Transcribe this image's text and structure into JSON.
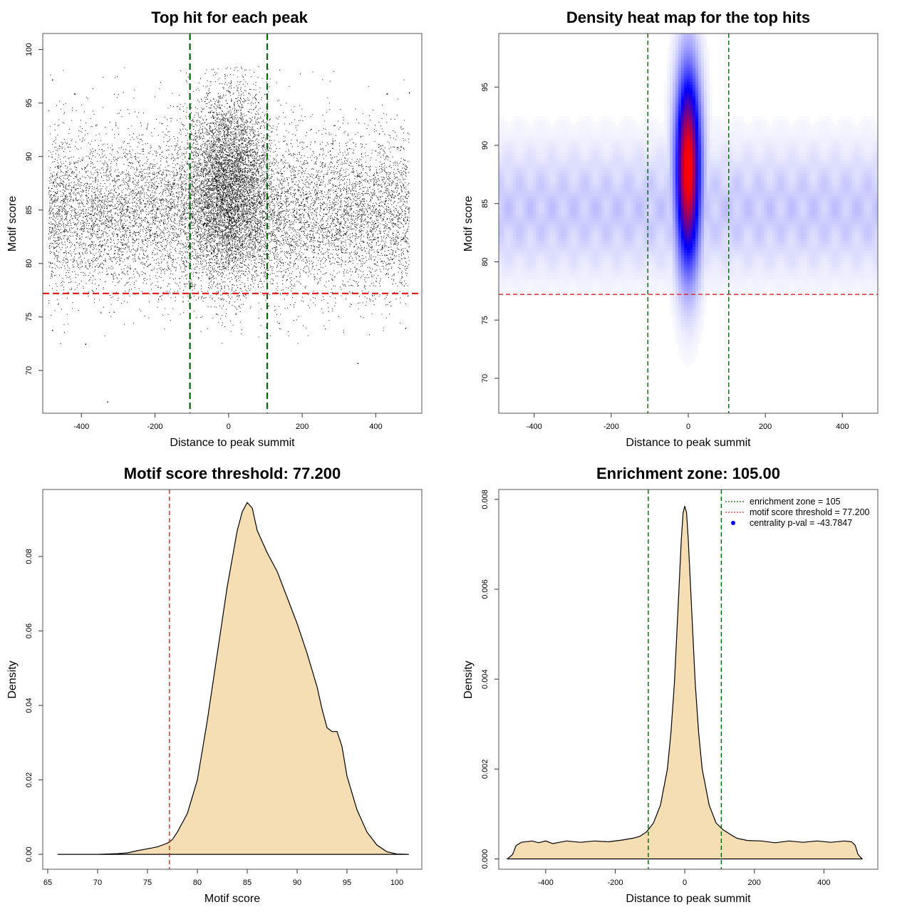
{
  "chart_data": [
    {
      "id": "scatter",
      "type": "scatter",
      "title": "Top hit for each peak",
      "xlabel": "Distance to peak summit",
      "ylabel": "Motif score",
      "xlim": [
        -505,
        525
      ],
      "ylim": [
        66,
        101.5
      ],
      "xticks": [
        -400,
        -200,
        0,
        200,
        400
      ],
      "yticks": [
        70,
        75,
        80,
        85,
        90,
        95,
        100
      ],
      "vlines": [
        {
          "x": -105,
          "color": "#006400"
        },
        {
          "x": 105,
          "color": "#006400"
        }
      ],
      "hlines": [
        {
          "y": 77.2,
          "color": "#dd2222"
        }
      ],
      "point_color": "#000000",
      "clouds": [
        {
          "x_range": [
            -490,
            490
          ],
          "y_mean": 84.5,
          "y_sd": 3.6,
          "count": 9000
        },
        {
          "x_range": [
            -490,
            490
          ],
          "y_mean": 86,
          "y_sd": 4.8,
          "count": 1400
        },
        {
          "x_center": 0,
          "x_sd": 55,
          "y_mean": 87.5,
          "y_sd": 4.5,
          "count": 11000
        }
      ],
      "outliers": [
        {
          "x": -480,
          "y": 97.2
        },
        {
          "x": -330,
          "y": 67.1
        },
        {
          "x": -390,
          "y": 72.5
        },
        {
          "x": 350,
          "y": 70.7
        },
        {
          "x": 480,
          "y": 74.0
        },
        {
          "x": -480,
          "y": 73.8
        },
        {
          "x": 490,
          "y": 96.0
        },
        {
          "x": -420,
          "y": 95.9
        },
        {
          "x": 430,
          "y": 95.9
        }
      ]
    },
    {
      "id": "heatmap",
      "type": "heatmap",
      "title": "Density heat map for the top hits",
      "xlabel": "Distance to peak summit",
      "ylabel": "Motif score",
      "xlim": [
        -492,
        492
      ],
      "ylim": [
        67,
        99.6
      ],
      "xticks": [
        -400,
        -200,
        0,
        200,
        400
      ],
      "yticks": [
        70,
        75,
        80,
        85,
        90,
        95
      ],
      "vlines": [
        {
          "x": -105,
          "color": "#006400"
        },
        {
          "x": 105,
          "color": "#006400"
        }
      ],
      "hlines": [
        {
          "y": 77.2,
          "color": "#dd2222"
        }
      ],
      "colors": [
        "#ffffff",
        "#0000ff",
        "#ff0000"
      ],
      "hotspot": {
        "x_center": 0,
        "x_sd": 22,
        "y_center": 88,
        "y_sd": 4.2
      },
      "background": {
        "y_center": 84.5,
        "y_sd": 3.8,
        "y_range": [
          77,
          96
        ]
      }
    },
    {
      "id": "score-density",
      "type": "area",
      "title": "Motif score threshold: 77.200",
      "xlabel": "Motif score",
      "ylabel": "Density",
      "xlim": [
        64.5,
        102.5
      ],
      "ylim": [
        -0.004,
        0.098
      ],
      "xticks": [
        65,
        70,
        75,
        80,
        85,
        90,
        95,
        100
      ],
      "yticks": [
        0,
        0.02,
        0.04,
        0.06,
        0.08
      ],
      "ytick_labels": [
        "0.00",
        "0.02",
        "0.04",
        "0.06",
        "0.08"
      ],
      "vlines": [
        {
          "x": 77.2,
          "color": "#dd2222"
        }
      ],
      "fill": "#f5deb3",
      "x": [
        66,
        70,
        72,
        73,
        74,
        75,
        76,
        77,
        77.5,
        78,
        79,
        80,
        81,
        82,
        83,
        84,
        84.5,
        85,
        85.5,
        86,
        87,
        88,
        89,
        90,
        91,
        92,
        92.5,
        93,
        93.5,
        94,
        94.5,
        95,
        96,
        97,
        98,
        99,
        100,
        101.2
      ],
      "y": [
        0,
        0,
        0.0002,
        0.0004,
        0.001,
        0.0015,
        0.002,
        0.003,
        0.004,
        0.006,
        0.011,
        0.02,
        0.036,
        0.054,
        0.072,
        0.087,
        0.092,
        0.0945,
        0.093,
        0.087,
        0.081,
        0.076,
        0.069,
        0.062,
        0.054,
        0.045,
        0.039,
        0.034,
        0.033,
        0.033,
        0.029,
        0.021,
        0.012,
        0.006,
        0.0025,
        0.0007,
        0.0001,
        0
      ]
    },
    {
      "id": "distance-density",
      "type": "area",
      "title": "Enrichment zone: 105.00",
      "xlabel": "Distance to peak summit",
      "ylabel": "Density",
      "xlim": [
        -535,
        555
      ],
      "ylim": [
        -0.00023,
        0.00822
      ],
      "xticks": [
        -400,
        -200,
        0,
        200,
        400
      ],
      "yticks": [
        0,
        0.002,
        0.004,
        0.006,
        0.008
      ],
      "ytick_labels": [
        "0.000",
        "0.002",
        "0.004",
        "0.006",
        "0.008"
      ],
      "vlines": [
        {
          "x": -105,
          "color": "#006400"
        },
        {
          "x": 105,
          "color": "#006400"
        }
      ],
      "fill": "#f5deb3",
      "x": [
        -510,
        -495,
        -485,
        -470,
        -440,
        -420,
        -400,
        -380,
        -340,
        -300,
        -260,
        -220,
        -180,
        -150,
        -130,
        -110,
        -90,
        -70,
        -50,
        -40,
        -30,
        -20,
        -10,
        -5,
        0,
        5,
        10,
        20,
        30,
        40,
        50,
        70,
        90,
        110,
        130,
        150,
        180,
        220,
        260,
        300,
        340,
        380,
        420,
        460,
        480,
        490,
        498,
        510
      ],
      "y": [
        0,
        0.0001,
        0.0003,
        0.00037,
        0.0004,
        0.00036,
        0.0004,
        0.00034,
        0.0004,
        0.00037,
        0.0004,
        0.00038,
        0.00042,
        0.00046,
        0.0005,
        0.0006,
        0.0008,
        0.0012,
        0.002,
        0.0028,
        0.0039,
        0.0055,
        0.0071,
        0.0077,
        0.00785,
        0.0077,
        0.0071,
        0.0055,
        0.0039,
        0.0028,
        0.002,
        0.0012,
        0.0008,
        0.00065,
        0.00055,
        0.00046,
        0.00041,
        0.0004,
        0.00036,
        0.0004,
        0.00037,
        0.0004,
        0.00037,
        0.0004,
        0.00038,
        0.0003,
        0.0001,
        0
      ]
    }
  ],
  "legend": {
    "items": [
      {
        "label": "enrichment zone = 105",
        "type": "line",
        "color": "#006400"
      },
      {
        "label": "motif score threshold = 77.200",
        "type": "line",
        "color": "#dd2222"
      },
      {
        "label": "centrality p-val = -43.7847",
        "type": "point",
        "color": "#0000ff"
      }
    ]
  }
}
